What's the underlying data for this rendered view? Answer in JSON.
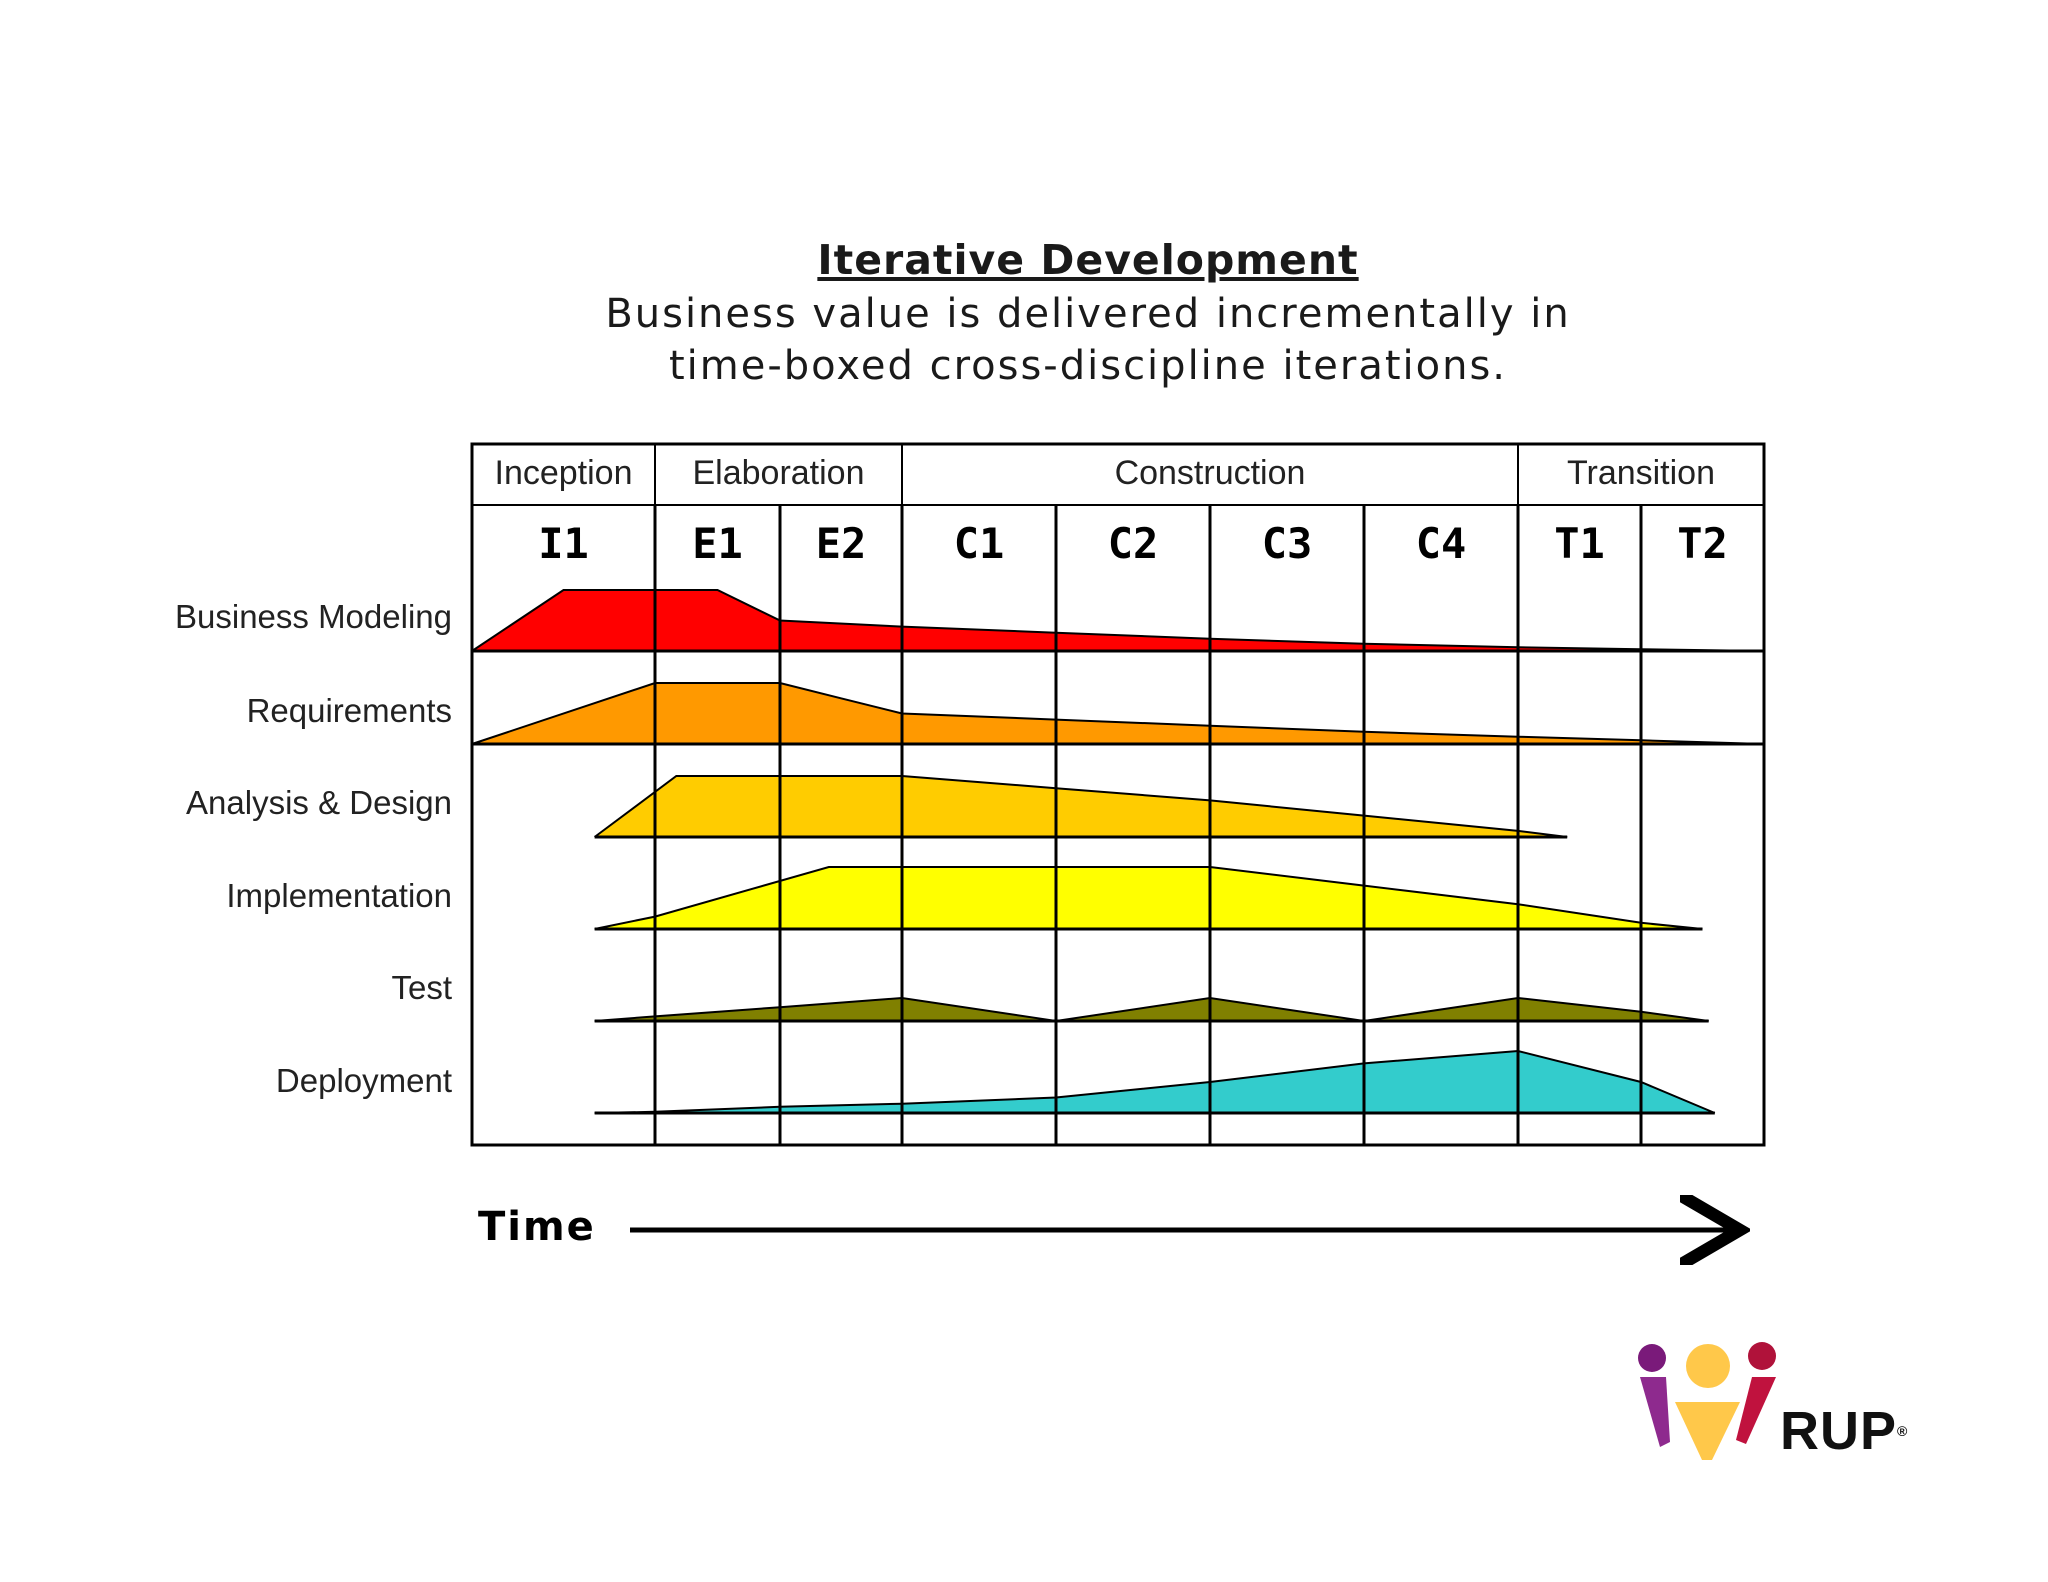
{
  "title": "Iterative Development",
  "subtitle_line1": "Business value is delivered incrementally in",
  "subtitle_line2": "time-boxed cross-discipline iterations.",
  "phases": [
    "Inception",
    "Elaboration",
    "Construction",
    "Transition"
  ],
  "iterations": [
    "I1",
    "E1",
    "E2",
    "C1",
    "C2",
    "C3",
    "C4",
    "T1",
    "T2"
  ],
  "disciplines": [
    {
      "name": "Business Modeling",
      "color": "#ff0000",
      "profile": [
        [
          0,
          0
        ],
        [
          0.5,
          1
        ],
        [
          1,
          1
        ],
        [
          1.5,
          1
        ],
        [
          2,
          0.5
        ],
        [
          3,
          0.4
        ],
        [
          4,
          0.3
        ],
        [
          5,
          0.2
        ],
        [
          6,
          0.12
        ],
        [
          7,
          0.06
        ],
        [
          8,
          0.03
        ],
        [
          9,
          0
        ]
      ]
    },
    {
      "name": "Requirements",
      "color": "#ff9900",
      "profile": [
        [
          0,
          0
        ],
        [
          1,
          1
        ],
        [
          2,
          1
        ],
        [
          2.5,
          0.75
        ],
        [
          3,
          0.5
        ],
        [
          4,
          0.4
        ],
        [
          5,
          0.3
        ],
        [
          6,
          0.2
        ],
        [
          7,
          0.12
        ],
        [
          8,
          0.06
        ],
        [
          9,
          0
        ]
      ]
    },
    {
      "name": "Analysis & Design",
      "color": "#ffcc00",
      "profile": [
        [
          0.67,
          0
        ],
        [
          1.17,
          1
        ],
        [
          2,
          1
        ],
        [
          3,
          1
        ],
        [
          4,
          0.8
        ],
        [
          5,
          0.6
        ],
        [
          6,
          0.35
        ],
        [
          7,
          0.1
        ],
        [
          7.4,
          0
        ]
      ]
    },
    {
      "name": "Implementation",
      "color": "#ffff00",
      "profile": [
        [
          0.67,
          0
        ],
        [
          1,
          0.2
        ],
        [
          2.4,
          1
        ],
        [
          3,
          1
        ],
        [
          4,
          1
        ],
        [
          5,
          1
        ],
        [
          6,
          0.7
        ],
        [
          7,
          0.4
        ],
        [
          8,
          0.1
        ],
        [
          8.5,
          0
        ]
      ]
    },
    {
      "name": "Test",
      "color": "#808000",
      "profile": [
        [
          0.67,
          0
        ],
        [
          1,
          0.1
        ],
        [
          2,
          0.3
        ],
        [
          3,
          0.5
        ],
        [
          4,
          0
        ],
        [
          5,
          0.5
        ],
        [
          6,
          0
        ],
        [
          7,
          0.5
        ],
        [
          8,
          0.2
        ],
        [
          8.55,
          0
        ]
      ]
    },
    {
      "name": "Deployment",
      "color": "#33cccc",
      "profile": [
        [
          0.67,
          0
        ],
        [
          1,
          0.02
        ],
        [
          2,
          0.1
        ],
        [
          3,
          0.15
        ],
        [
          4,
          0.25
        ],
        [
          5,
          0.5
        ],
        [
          6,
          0.8
        ],
        [
          7,
          1
        ],
        [
          8,
          0.5
        ],
        [
          8.6,
          0
        ]
      ]
    }
  ],
  "axis_label": "Time",
  "logo_text": "RUP",
  "logo_mark": "®"
}
